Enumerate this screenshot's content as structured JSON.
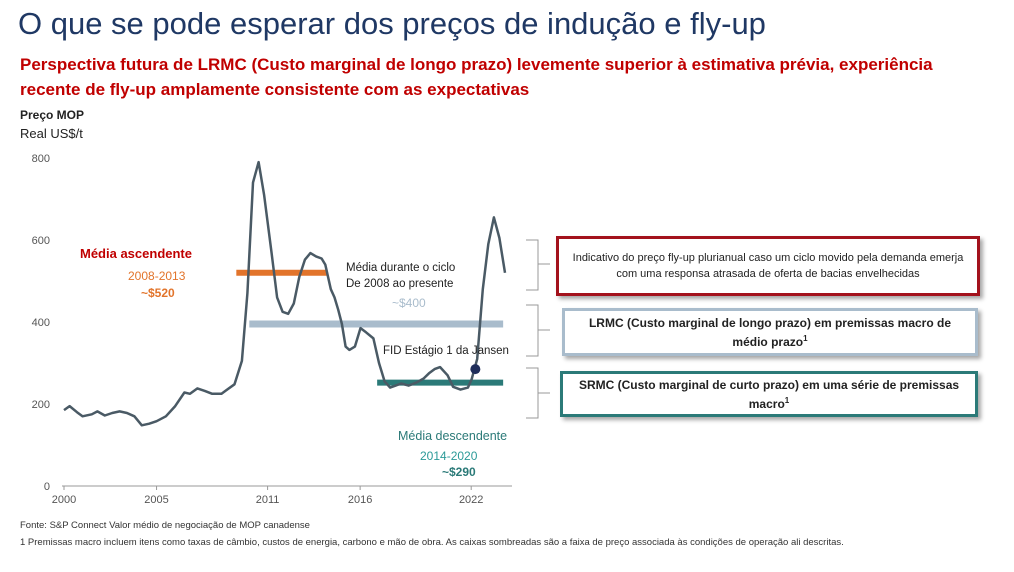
{
  "title": "O que se pode esperar dos preços de indução e fly-up",
  "subtitle": "Perspectiva futura de LRMC (Custo marginal de longo prazo) levemente superior à estimativa prévia, experiência recente de fly-up amplamente consistente com as expectativas",
  "chart_data": {
    "type": "line",
    "ylabel_line1": "Preço MOP",
    "ylabel_line2": "Real US$/t",
    "ylim": [
      0,
      800
    ],
    "xlim": [
      2000,
      2022.8
    ],
    "yticks": [
      "0",
      "200",
      "400",
      "600",
      "800"
    ],
    "xticks": [
      "2000",
      "2005",
      "2011",
      "2016",
      "2022"
    ],
    "xtick_values": [
      2000,
      5,
      11,
      16,
      22
    ],
    "grid": false,
    "colors": {
      "price": "#4a5a65",
      "ascending": "#e2742b",
      "cycle": "#a9bccc",
      "descending": "#2b7a78",
      "marker": "#1f2d5a"
    },
    "series": [
      {
        "values": [
          [
            2000,
            185
          ],
          [
            2000.3,
            195
          ],
          [
            2000.7,
            180
          ],
          [
            2001,
            170
          ],
          [
            2001.5,
            175
          ],
          [
            2001.8,
            182
          ],
          [
            2002.2,
            172
          ],
          [
            2002.6,
            178
          ],
          [
            2003,
            182
          ],
          [
            2003.4,
            178
          ],
          [
            2003.8,
            170
          ],
          [
            2004.2,
            148
          ],
          [
            2004.6,
            152
          ],
          [
            2005,
            158
          ],
          [
            2005.5,
            170
          ],
          [
            2006,
            195
          ],
          [
            2006.5,
            228
          ],
          [
            2006.8,
            225
          ],
          [
            2007.2,
            238
          ],
          [
            2007.6,
            232
          ],
          [
            2008,
            225
          ],
          [
            2008.5,
            225
          ],
          [
            2008.8,
            235
          ],
          [
            2009.2,
            248
          ],
          [
            2009.6,
            305
          ],
          [
            2009.9,
            470
          ],
          [
            2010.2,
            740
          ],
          [
            2010.5,
            790
          ],
          [
            2010.8,
            710
          ],
          [
            2011.2,
            570
          ],
          [
            2011.5,
            460
          ],
          [
            2011.8,
            425
          ],
          [
            2012.1,
            420
          ],
          [
            2012.4,
            445
          ],
          [
            2012.7,
            510
          ],
          [
            2013,
            552
          ],
          [
            2013.3,
            568
          ],
          [
            2013.6,
            560
          ],
          [
            2013.9,
            555
          ],
          [
            2014.1,
            540
          ],
          [
            2014.4,
            480
          ],
          [
            2014.6,
            460
          ],
          [
            2014.8,
            430
          ],
          [
            2015,
            395
          ],
          [
            2015.2,
            340
          ],
          [
            2015.4,
            332
          ],
          [
            2015.7,
            340
          ],
          [
            2016,
            385
          ],
          [
            2016.3,
            375
          ],
          [
            2016.7,
            360
          ],
          [
            2017,
            300
          ],
          [
            2017.3,
            255
          ],
          [
            2017.6,
            240
          ],
          [
            2017.9,
            245
          ],
          [
            2018.2,
            250
          ],
          [
            2018.6,
            245
          ],
          [
            2019,
            252
          ],
          [
            2019.4,
            262
          ],
          [
            2019.7,
            275
          ],
          [
            2020,
            285
          ],
          [
            2020.3,
            290
          ],
          [
            2020.7,
            270
          ],
          [
            2021,
            242
          ],
          [
            2021.4,
            235
          ],
          [
            2021.8,
            240
          ],
          [
            2022,
            260
          ],
          [
            2022.3,
            310
          ],
          [
            2022.6,
            480
          ],
          [
            2022.9,
            590
          ],
          [
            2023.2,
            655
          ],
          [
            2023.5,
            605
          ],
          [
            2023.8,
            520
          ]
        ]
      }
    ],
    "annotations": {
      "ascending": {
        "label": "Média ascendente",
        "period": "2008-2013",
        "value": "~$520",
        "y": 520,
        "x_from": 2009.3,
        "x_to": 2014.2
      },
      "cycle": {
        "label_line1": "Média durante o ciclo",
        "label_line2": "De 2008 ao presente",
        "value": "~$400",
        "y": 400,
        "x_from": 2010,
        "x_to": 2024
      },
      "descending": {
        "label": "Média descendente",
        "period": "2014-2020",
        "value": "~$290",
        "y": 290,
        "x_from": 2016.9,
        "x_to": 2024
      },
      "fid": {
        "label": "FID Estágio 1 da Jansen",
        "x": 2021.5,
        "y": 290
      }
    }
  },
  "boxes": {
    "flyup": "Indicativo do preço fly-up plurianual caso um ciclo movido pela demanda emerja com uma responsa atrasada de oferta de bacias envelhecidas",
    "lrmc": "LRMC (Custo marginal de longo prazo) em premissas macro de médio prazo",
    "lrmc_sup": "1",
    "srmc": "SRMC (Custo marginal de curto prazo) em uma série de premissas macro",
    "srmc_sup": "1"
  },
  "footnotes": {
    "source": "Fonte: S&P Connect Valor médio de negociação de MOP canadense",
    "note1": "1 Premissas macro incluem itens como taxas de câmbio, custos de energia, carbono e mão de obra. As caixas sombreadas são a faixa de preço associada às condições de operação ali descritas."
  }
}
